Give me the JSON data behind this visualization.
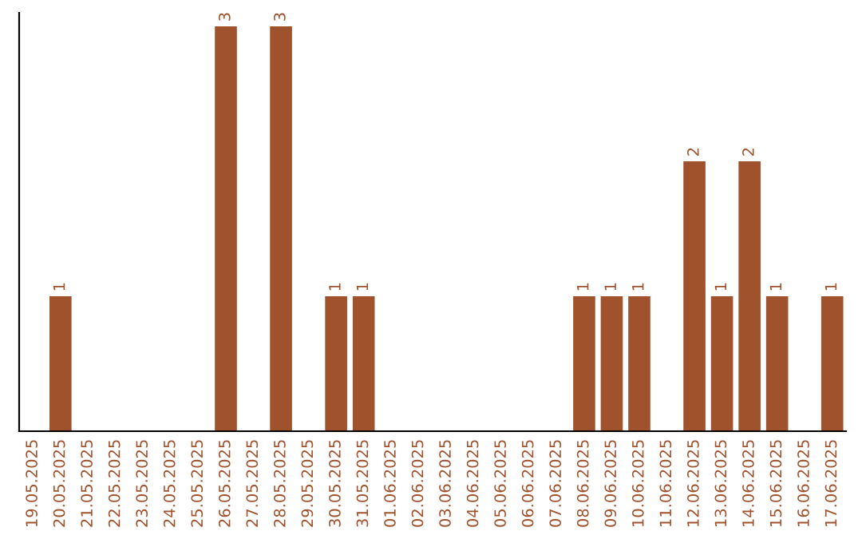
{
  "chart_data": {
    "type": "bar",
    "categories": [
      "19.05.2025",
      "20.05.2025",
      "21.05.2025",
      "22.05.2025",
      "23.05.2025",
      "24.05.2025",
      "25.05.2025",
      "26.05.2025",
      "27.05.2025",
      "28.05.2025",
      "29.05.2025",
      "30.05.2025",
      "31.05.2025",
      "01.06.2025",
      "02.06.2025",
      "03.06.2025",
      "04.06.2025",
      "05.06.2025",
      "06.06.2025",
      "07.06.2025",
      "08.06.2025",
      "09.06.2025",
      "10.06.2025",
      "11.06.2025",
      "12.06.2025",
      "13.06.2025",
      "14.06.2025",
      "15.06.2025",
      "16.06.2025",
      "17.06.2025"
    ],
    "values": [
      0,
      1,
      0,
      0,
      0,
      0,
      0,
      3,
      0,
      3,
      0,
      1,
      1,
      0,
      0,
      0,
      0,
      0,
      0,
      0,
      1,
      1,
      1,
      0,
      2,
      1,
      2,
      1,
      0,
      1
    ],
    "value_labels": [
      null,
      "1",
      null,
      null,
      null,
      null,
      null,
      "3",
      null,
      "3",
      null,
      "1",
      "1",
      null,
      null,
      null,
      null,
      null,
      null,
      null,
      "1",
      "1",
      "1",
      null,
      "2",
      "1",
      "2",
      "1",
      null,
      "1"
    ],
    "color": "#a0522d",
    "ylim": [
      0,
      3.1
    ],
    "tick_labels": "x",
    "grid": false,
    "legend": false
  }
}
